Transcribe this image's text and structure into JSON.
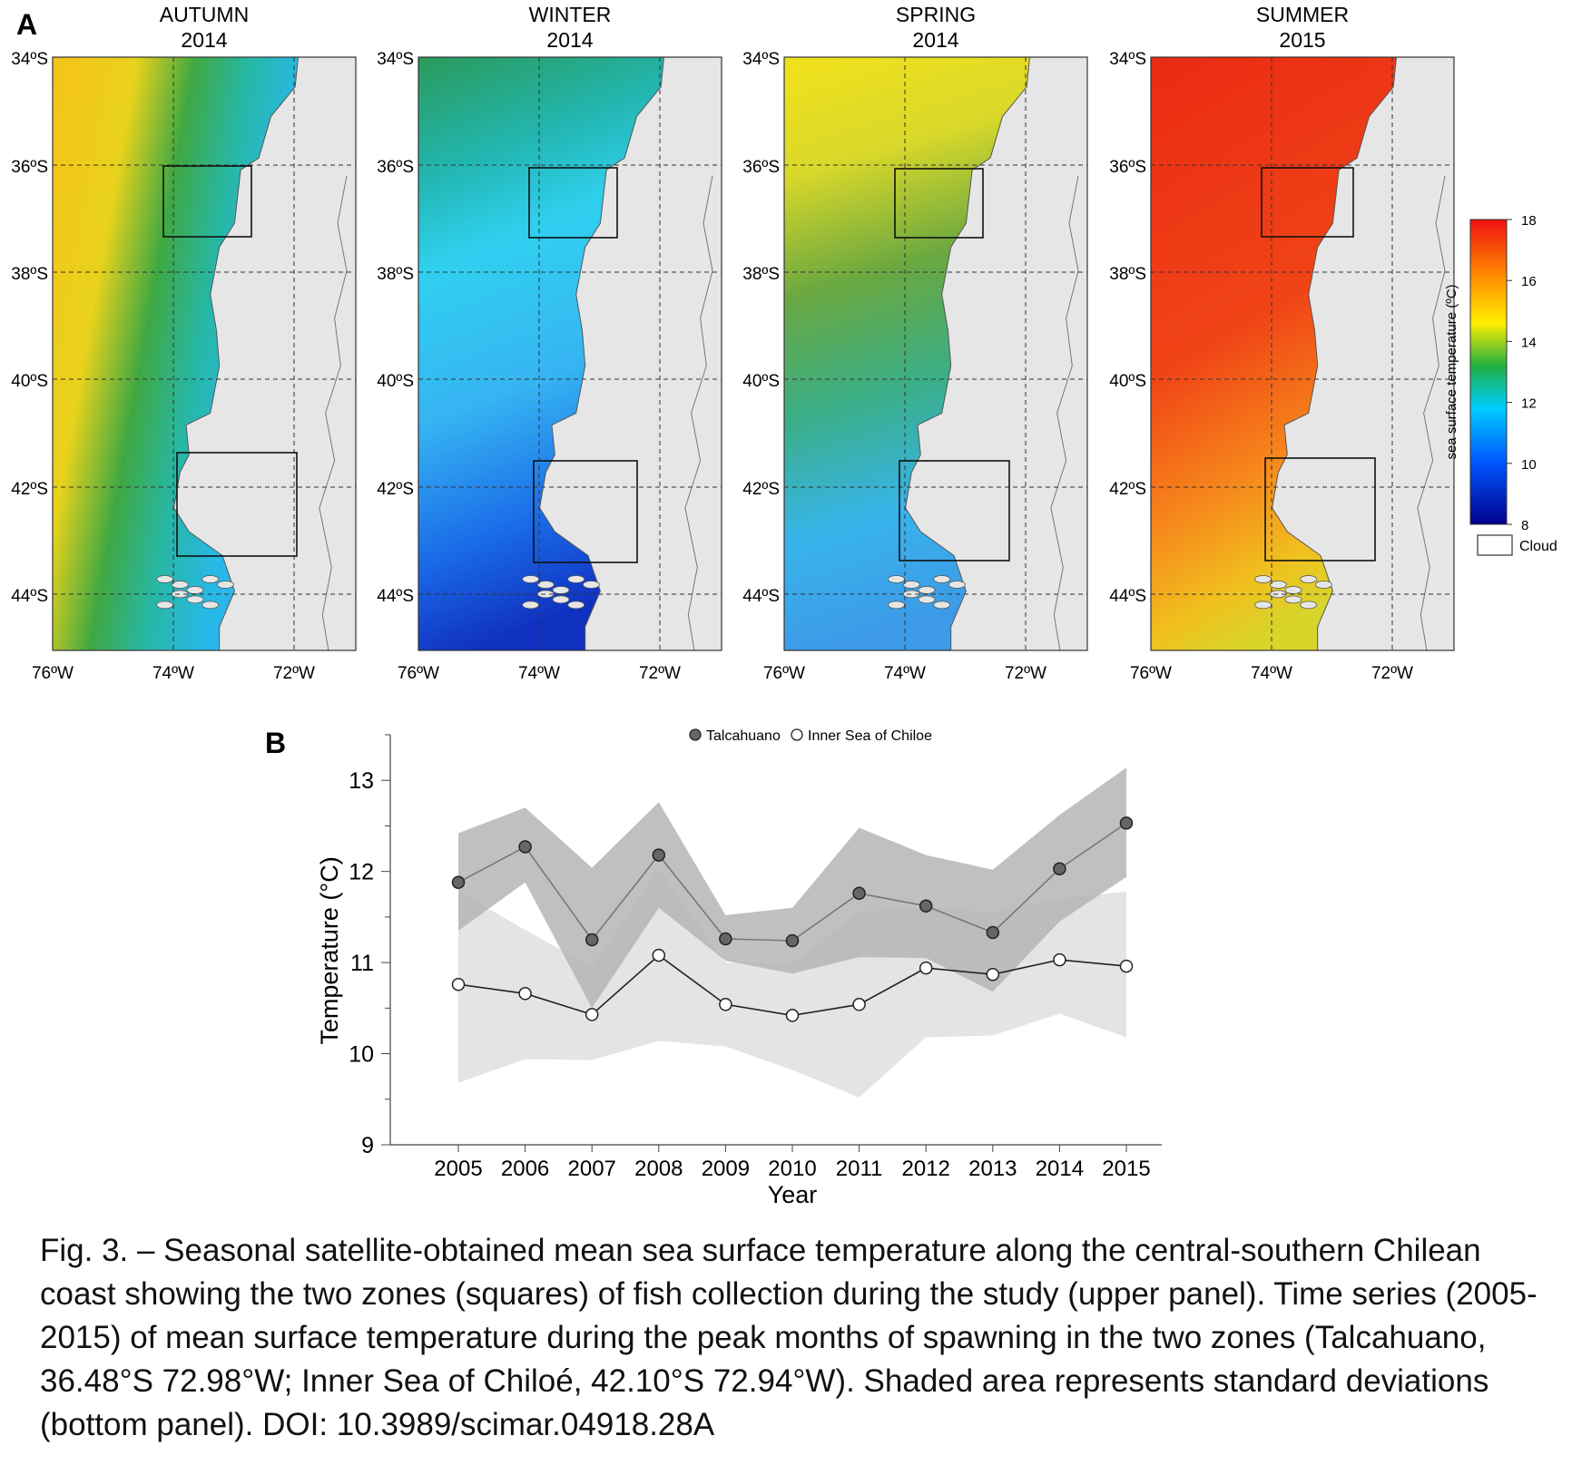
{
  "panel_a": {
    "letter": "A",
    "maps": [
      {
        "season": "AUTUMN",
        "year": "2014"
      },
      {
        "season": "WINTER",
        "year": "2014"
      },
      {
        "season": "SPRING",
        "year": "2014"
      },
      {
        "season": "SUMMER",
        "year": "2015"
      }
    ],
    "lat_labels": [
      "34ºS",
      "36ºS",
      "38ºS",
      "40ºS",
      "42ºS",
      "44ºS"
    ],
    "lon_labels": [
      "76ºW",
      "74ºW",
      "72ºW"
    ],
    "colorbar": {
      "label": "sea surface temperature (ºC)",
      "ticks": [
        "18",
        "16",
        "14",
        "12",
        "10",
        "8"
      ],
      "min": 8,
      "max": 18,
      "colors": [
        "#00008b",
        "#0055ff",
        "#00ccff",
        "#20b040",
        "#ffee00",
        "#ff8800",
        "#ee1111"
      ],
      "cloud_label": "Cloud"
    },
    "land_color": "#e6e6e6"
  },
  "chart_data": {
    "type": "line",
    "panel_letter": "B",
    "x": [
      2005,
      2006,
      2007,
      2008,
      2009,
      2010,
      2011,
      2012,
      2013,
      2014,
      2015
    ],
    "xlabel": "Year",
    "ylabel": "Temperature (°C)",
    "ylim": [
      9,
      13.5
    ],
    "yticks": [
      9,
      10,
      11,
      12,
      13
    ],
    "grid": false,
    "legend_position": "top",
    "series": [
      {
        "name": "Talcahuano",
        "marker": "filled",
        "values": [
          11.88,
          12.27,
          11.25,
          12.18,
          11.26,
          11.24,
          11.76,
          11.62,
          11.33,
          12.03,
          12.53
        ],
        "upper": [
          12.42,
          12.7,
          12.04,
          12.76,
          11.52,
          11.6,
          12.48,
          12.18,
          12.02,
          12.62,
          13.14
        ],
        "lower": [
          11.35,
          11.88,
          10.5,
          11.6,
          11.02,
          10.88,
          11.06,
          11.05,
          10.68,
          11.45,
          11.94
        ],
        "fill": "#b5b5b5",
        "line": "#777777"
      },
      {
        "name": "Inner Sea of Chiloe",
        "marker": "open",
        "values": [
          10.76,
          10.66,
          10.43,
          11.08,
          10.54,
          10.42,
          10.54,
          10.94,
          10.87,
          11.03,
          10.96
        ],
        "upper": [
          11.78,
          11.36,
          10.95,
          12.02,
          11.0,
          10.98,
          11.56,
          11.6,
          11.55,
          11.7,
          11.78
        ],
        "lower": [
          9.68,
          9.94,
          9.93,
          10.14,
          10.08,
          9.82,
          9.52,
          10.18,
          10.2,
          10.44,
          10.18
        ],
        "fill": "#e4e4e4",
        "line": "#222222"
      }
    ]
  },
  "caption": "Fig. 3. – Seasonal satellite-obtained mean sea surface temperature along the central-southern Chilean coast showing the two zones (squares) of fish collection during the study (upper panel). Time series (2005-2015) of mean surface temperature during the peak months of spawning in the two zones (Talcahuano, 36.48°S 72.98°W; Inner Sea of Chiloé, 42.10°S 72.94°W). Shaded area represents standard deviations (bottom panel). DOI: 10.3989/scimar.04918.28A"
}
